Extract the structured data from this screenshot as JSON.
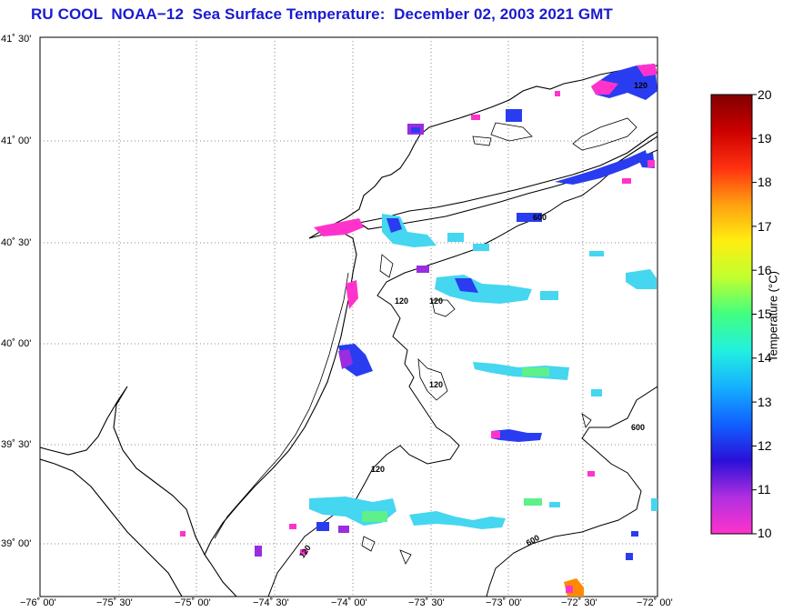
{
  "title": "RU COOL  NOAA−12  Sea Surface Temperature:  December 02, 2003 2021 GMT",
  "latitudes": [
    {
      "label": "41˚ 30'",
      "value": 41.5
    },
    {
      "label": "41˚ 00'",
      "value": 41.0
    },
    {
      "label": "40˚ 30'",
      "value": 40.5
    },
    {
      "label": "40˚ 00'",
      "value": 40.0
    },
    {
      "label": "39˚ 30'",
      "value": 39.5
    },
    {
      "label": "39˚ 00'",
      "value": 39.0
    }
  ],
  "longitudes": [
    {
      "label": "−76˚ 00'",
      "value": -76.0
    },
    {
      "label": "−75˚ 30'",
      "value": -75.5
    },
    {
      "label": "−75˚ 00'",
      "value": -75.0
    },
    {
      "label": "−74˚ 30'",
      "value": -74.5
    },
    {
      "label": "−74˚ 00'",
      "value": -74.0
    },
    {
      "label": "−73˚ 30'",
      "value": -73.5
    },
    {
      "label": "−73˚ 00'",
      "value": -73.0
    },
    {
      "label": "−72˚ 30'",
      "value": -72.5
    },
    {
      "label": "−72˚ 00'",
      "value": -72.0
    }
  ],
  "contour_labels": [
    "120",
    "120",
    "120",
    "120",
    "120",
    "120",
    "600",
    "600",
    "600"
  ],
  "colorbar": {
    "title": "Temperature (°C)",
    "min": 10,
    "max": 20,
    "ticks": [
      "20",
      "19",
      "18",
      "17",
      "16",
      "15",
      "14",
      "13",
      "12",
      "11",
      "10"
    ],
    "colors": [
      "#ff33cc",
      "#b02fe0",
      "#2a10d8",
      "#1060ff",
      "#15b0ff",
      "#22f0e0",
      "#40ff80",
      "#c0ff30",
      "#ffee10",
      "#ffa010",
      "#ff3010",
      "#cc0000",
      "#800000"
    ]
  },
  "sst_colors": {
    "magenta": "#ff33cc",
    "purple": "#9a2de0",
    "blue": "#2a3cf0",
    "cyan": "#45d6f0",
    "green": "#5ef08a",
    "orange": "#ff8a00"
  }
}
